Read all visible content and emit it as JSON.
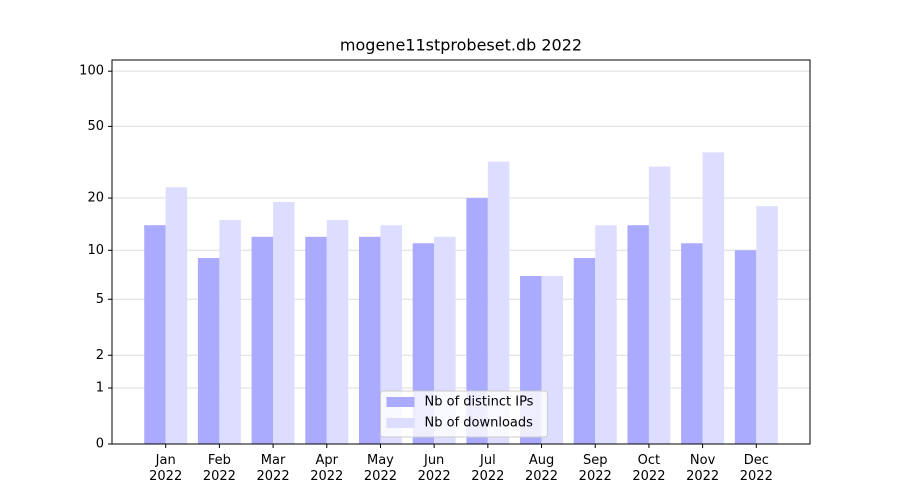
{
  "chart_data": {
    "type": "bar",
    "title": "mogene11stprobeset.db 2022",
    "categories": [
      "Jan\n2022",
      "Feb\n2022",
      "Mar\n2022",
      "Apr\n2022",
      "May\n2022",
      "Jun\n2022",
      "Jul\n2022",
      "Aug\n2022",
      "Sep\n2022",
      "Oct\n2022",
      "Nov\n2022",
      "Dec\n2022"
    ],
    "series": [
      {
        "name": "Nb of distinct IPs",
        "color": "#aaaaff",
        "values": [
          14,
          9,
          12,
          12,
          12,
          11,
          20,
          7,
          9,
          14,
          11,
          10
        ]
      },
      {
        "name": "Nb of downloads",
        "color": "#ddddff",
        "values": [
          23,
          15,
          19,
          15,
          14,
          12,
          32,
          7,
          14,
          30,
          36,
          18
        ]
      }
    ],
    "yscale": "log1p",
    "ylim": [
      0,
      115
    ],
    "yticks": [
      0,
      1,
      2,
      5,
      10,
      20,
      50,
      100
    ],
    "grid": true,
    "legend": "lower center"
  }
}
